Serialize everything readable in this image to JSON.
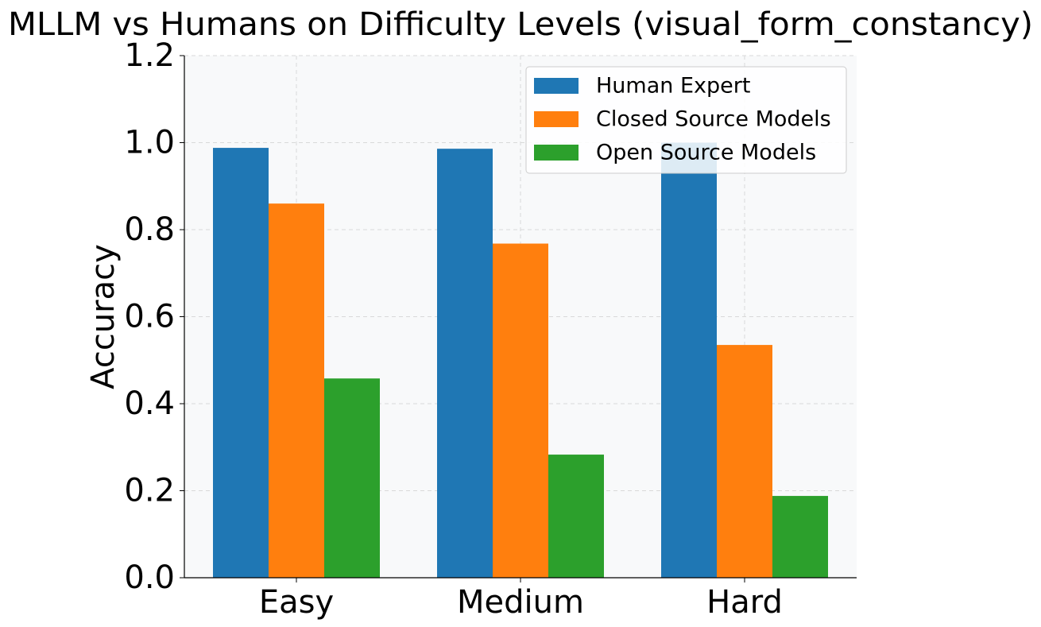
{
  "chart_data": {
    "type": "bar",
    "title": "MLLM vs Humans on Difficulty Levels (visual_form_constancy)",
    "xlabel": "",
    "ylabel": "Accuracy",
    "categories": [
      "Easy",
      "Medium",
      "Hard"
    ],
    "series": [
      {
        "name": "Human Expert",
        "color": "#1f77b4",
        "values": [
          0.988,
          0.986,
          1.0
        ]
      },
      {
        "name": "Closed Source Models",
        "color": "#ff7f0e",
        "values": [
          0.86,
          0.768,
          0.535
        ]
      },
      {
        "name": "Open Source Models",
        "color": "#2ca02c",
        "values": [
          0.458,
          0.283,
          0.188
        ]
      }
    ],
    "ylim": [
      0,
      1.2
    ],
    "yticks": [
      "0.0",
      "0.2",
      "0.4",
      "0.6",
      "0.8",
      "1.0",
      "1.2"
    ],
    "grid": true,
    "legend_position": "top-right",
    "plot_background": "#f8f9fa"
  }
}
